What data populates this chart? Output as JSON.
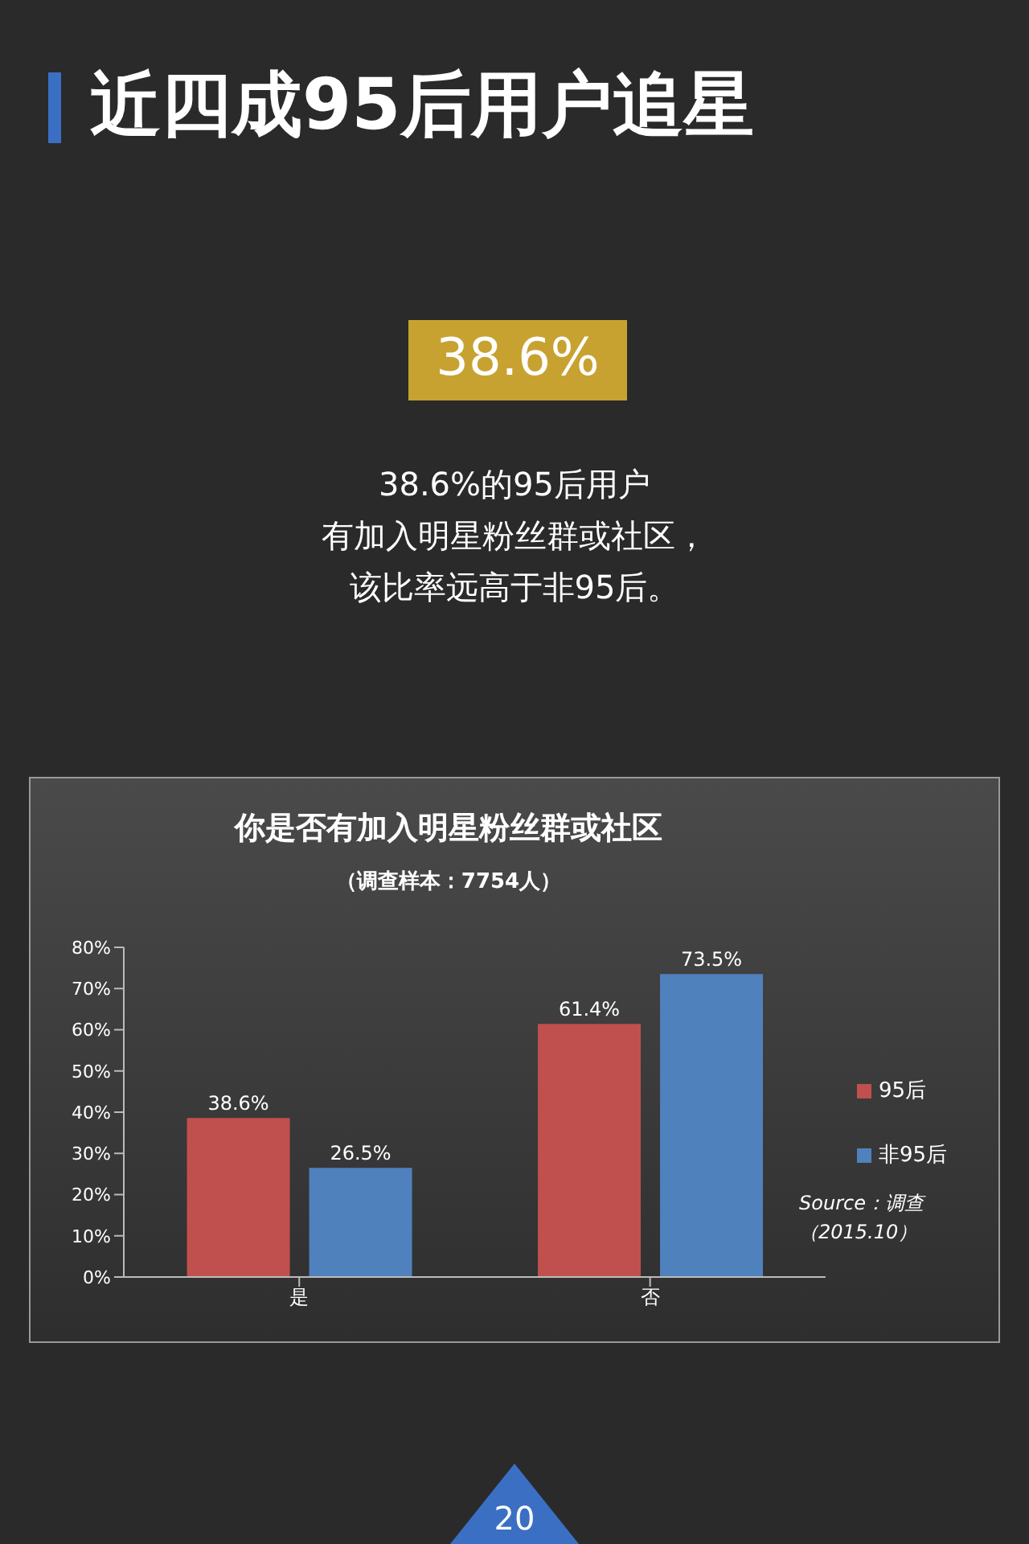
{
  "chart_data": {
    "type": "bar",
    "title": "近四成95后用户追星",
    "subtitle": "你是否有加入明星粉丝群或社区",
    "annotations": [
      "38.6%",
      "38.6%的95后用户",
      "有加入明星粉丝群或社区，",
      "该比率远高于非95后。",
      "（调查样本：7754人）",
      "Source：调查",
      "（2015.10）",
      "20"
    ],
    "categories": [
      "是",
      "否"
    ],
    "series": [
      {
        "name": "95后",
        "color": "#c0504d",
        "values": [
          38.6,
          61.4
        ],
        "value_labels": [
          "38.6%",
          "61.4%"
        ]
      },
      {
        "name": "非95后",
        "color": "#4f81bd",
        "values": [
          26.5,
          73.5
        ],
        "value_labels": [
          "26.5%",
          "73.5%"
        ]
      }
    ],
    "ylim": [
      0,
      80
    ],
    "yticks": [
      {
        "value": 0,
        "label": "0%"
      },
      {
        "value": 10,
        "label": "10%"
      },
      {
        "value": 20,
        "label": "20%"
      },
      {
        "value": 30,
        "label": "30%"
      },
      {
        "value": 40,
        "label": "40%"
      },
      {
        "value": 50,
        "label": "50%"
      },
      {
        "value": 60,
        "label": "60%"
      },
      {
        "value": 70,
        "label": "70%"
      },
      {
        "value": 80,
        "label": "80%"
      }
    ],
    "legend": "right"
  }
}
